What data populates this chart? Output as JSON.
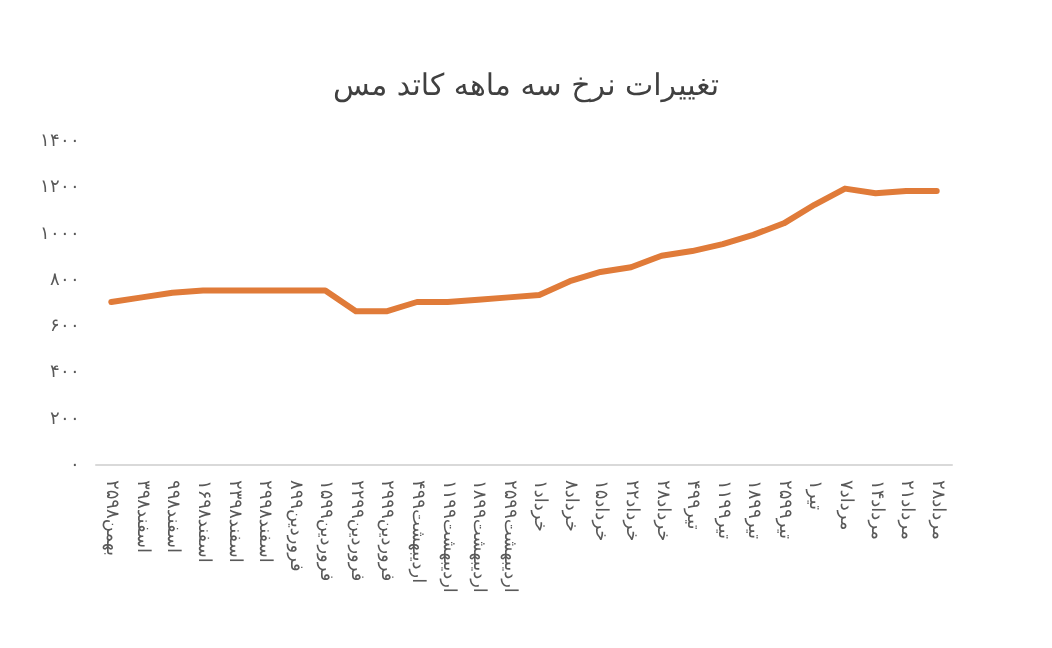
{
  "chart_data": {
    "type": "line",
    "title": "تغییرات نرخ سه ماهه کاتد مس",
    "categories": [
      "۲۵بهمن۹۸",
      "۳اسفند۹۸",
      "۹اسفند۹۸",
      "۱۶اسفند۹۸",
      "۲۳اسفند۹۸",
      "۲۹اسفند۹۸",
      "۸فروردین۹۹",
      "۱۵فروردین۹۹",
      "۲۲فروردین۹۹",
      "۲۹فروردین۹۹",
      "۴اردیبهشت۹۹",
      "۱۱اردیبهشت۹۹",
      "۱۸اردیبهشت۹۹",
      "۲۵اردیبهشت۹۹",
      "۱خرداد",
      "۸خرداد",
      "۱۵خرداد",
      "۲۲خرداد",
      "۲۸خرداد",
      "۴تیر۹۹",
      "۱۱تیر۹۹",
      "۱۸تیر۹۹",
      "۲۵تیر۹۹",
      "۱تیر",
      "۷مرداد",
      "۱۴مرداد",
      "۲۱مرداد",
      "۲۸مرداد"
    ],
    "series": [
      {
        "color": "#e07b39",
        "values": [
          700,
          720,
          740,
          750,
          750,
          750,
          750,
          750,
          660,
          660,
          700,
          700,
          710,
          720,
          730,
          790,
          830,
          850,
          900,
          920,
          950,
          990,
          1040,
          1120,
          1190,
          1170,
          1180,
          1180
        ]
      }
    ],
    "ylim": [
      0,
      1400
    ],
    "yticks": [
      {
        "value": 0,
        "label": "۰"
      },
      {
        "value": 200,
        "label": "۲۰۰"
      },
      {
        "value": 400,
        "label": "۴۰۰"
      },
      {
        "value": 600,
        "label": "۶۰۰"
      },
      {
        "value": 800,
        "label": "۸۰۰"
      },
      {
        "value": 1000,
        "label": "۱۰۰۰"
      },
      {
        "value": 1200,
        "label": "۱۲۰۰"
      },
      {
        "value": 1400,
        "label": "۱۴۰۰"
      }
    ],
    "grid": false,
    "marker": "none",
    "line_style": "solid"
  }
}
